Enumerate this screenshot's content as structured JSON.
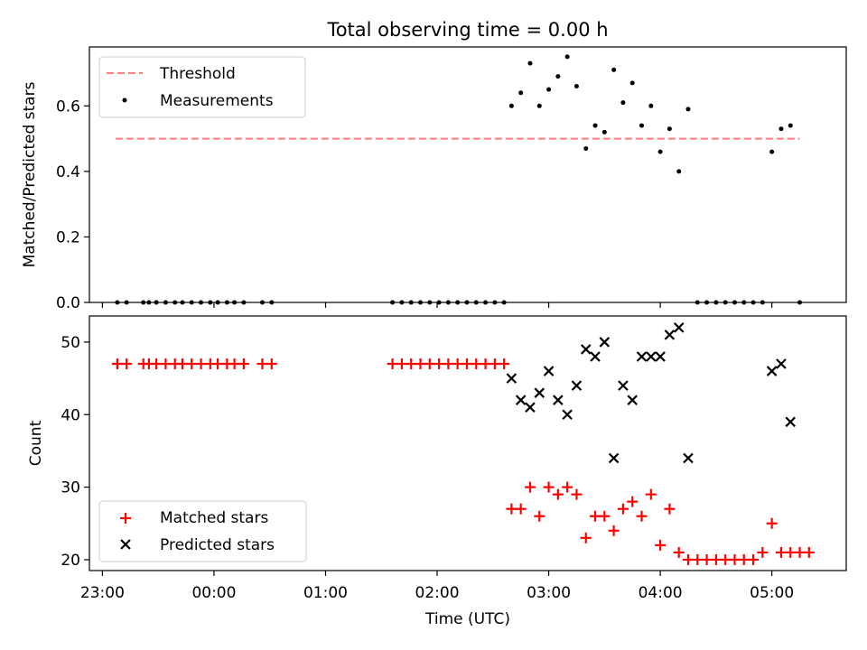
{
  "title": "Total observing time = 0.00 h",
  "xlabel": "Time (UTC)",
  "x_ticks": [
    "23:00",
    "00:00",
    "01:00",
    "02:00",
    "03:00",
    "04:00",
    "05:00"
  ],
  "x_tick_minutes": [
    -60,
    0,
    60,
    120,
    180,
    240,
    300
  ],
  "x_range": [
    -67,
    340
  ],
  "colors": {
    "threshold": "#ff7f7f",
    "measurements": "#000000",
    "matched": "#ff0000",
    "predicted": "#000000"
  },
  "chart_data": [
    {
      "type": "scatter",
      "panel": "top",
      "ylabel": "Matched/Predicted stars",
      "ylim": [
        0,
        0.78
      ],
      "y_ticks": [
        0.0,
        0.2,
        0.4,
        0.6
      ],
      "y_tick_labels": [
        "0.0",
        "0.2",
        "0.4",
        "0.6"
      ],
      "legend": "top-left",
      "series": [
        {
          "name": "Threshold",
          "style": "dashed-line",
          "x": [
            -53,
            315
          ],
          "values": [
            0.5,
            0.5
          ]
        },
        {
          "name": "Measurements",
          "style": "dot",
          "x": [
            -52,
            -47,
            -38,
            -35,
            -31,
            -26,
            -21,
            -17,
            -12,
            -7,
            -2,
            2,
            7,
            11,
            16,
            26,
            31,
            96,
            101,
            106,
            111,
            116,
            121,
            126,
            131,
            136,
            141,
            146,
            151,
            156,
            160,
            165,
            170,
            175,
            180,
            185,
            190,
            195,
            200,
            205,
            210,
            215,
            220,
            225,
            230,
            235,
            240,
            245,
            250,
            255,
            260,
            265,
            270,
            275,
            280,
            285,
            290,
            295,
            300,
            305,
            310,
            315
          ],
          "values": [
            0,
            0,
            0,
            0,
            0,
            0,
            0,
            0,
            0,
            0,
            0,
            0,
            0,
            0,
            0,
            0,
            0,
            0,
            0,
            0,
            0,
            0,
            0,
            0,
            0,
            0,
            0,
            0,
            0,
            0,
            0.6,
            0.64,
            0.73,
            0.6,
            0.65,
            0.69,
            0.75,
            0.66,
            0.47,
            0.54,
            0.52,
            0.71,
            0.61,
            0.67,
            0.54,
            0.6,
            0.46,
            0.53,
            0.4,
            0.59,
            0,
            0,
            0,
            0,
            0,
            0,
            0,
            0,
            0.46,
            0.53,
            0.54,
            0
          ]
        }
      ]
    },
    {
      "type": "scatter",
      "panel": "bottom",
      "ylabel": "Count",
      "ylim": [
        18.5,
        53.6
      ],
      "y_ticks": [
        20,
        30,
        40,
        50
      ],
      "y_tick_labels": [
        "20",
        "30",
        "40",
        "50"
      ],
      "legend": "bottom-left",
      "series": [
        {
          "name": "Matched stars",
          "marker": "plus",
          "x": [
            -52,
            -47,
            -38,
            -35,
            -31,
            -26,
            -21,
            -17,
            -12,
            -7,
            -2,
            2,
            7,
            11,
            16,
            26,
            31,
            96,
            101,
            106,
            111,
            116,
            121,
            126,
            131,
            136,
            141,
            146,
            151,
            156,
            160,
            165,
            170,
            175,
            180,
            185,
            190,
            195,
            200,
            205,
            210,
            215,
            220,
            225,
            230,
            235,
            240,
            245,
            250,
            255,
            260,
            265,
            270,
            275,
            280,
            285,
            290,
            295,
            300,
            305,
            310,
            315,
            320
          ],
          "values": [
            47,
            47,
            47,
            47,
            47,
            47,
            47,
            47,
            47,
            47,
            47,
            47,
            47,
            47,
            47,
            47,
            47,
            47,
            47,
            47,
            47,
            47,
            47,
            47,
            47,
            47,
            47,
            47,
            47,
            47,
            27,
            27,
            30,
            26,
            30,
            29,
            30,
            29,
            23,
            26,
            26,
            24,
            27,
            28,
            26,
            29,
            22,
            27,
            21,
            20,
            20,
            20,
            20,
            20,
            20,
            20,
            20,
            21,
            25,
            21,
            21,
            21,
            21
          ]
        },
        {
          "name": "Predicted stars",
          "marker": "x",
          "x": [
            160,
            165,
            170,
            175,
            180,
            185,
            190,
            195,
            200,
            205,
            210,
            215,
            220,
            225,
            230,
            235,
            240,
            245,
            250,
            255,
            300,
            305,
            310
          ],
          "values": [
            45,
            42,
            41,
            43,
            46,
            42,
            40,
            44,
            49,
            48,
            50,
            34,
            44,
            42,
            48,
            48,
            48,
            51,
            52,
            34,
            46,
            47,
            39
          ]
        }
      ]
    }
  ]
}
